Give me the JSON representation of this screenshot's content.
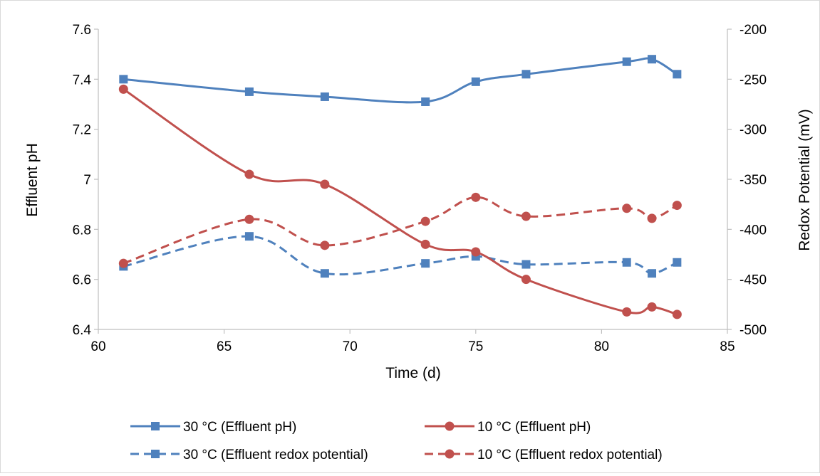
{
  "chart_data": {
    "type": "line",
    "title": "",
    "xlabel": "Time (d)",
    "ylabel": "Effluent pH",
    "y2label": "Redox Potential (mV)",
    "xlim": [
      60,
      85
    ],
    "ylim": [
      6.4,
      7.6
    ],
    "y2lim": [
      -500,
      -200
    ],
    "x_ticks": [
      "60",
      "65",
      "70",
      "75",
      "80",
      "85"
    ],
    "y_ticks": [
      "6.4",
      "6.6",
      "6.8",
      "7",
      "7.2",
      "7.4",
      "7.6"
    ],
    "y2_ticks": [
      "-500",
      "-450",
      "-400",
      "-350",
      "-300",
      "-250",
      "-200"
    ],
    "grid": false,
    "legend_position": "bottom",
    "x": [
      61,
      66,
      69,
      73,
      75,
      77,
      81,
      82,
      83
    ],
    "series": [
      {
        "name": "30 °C (Effluent pH)",
        "axis": "left",
        "color": "#4f81bd",
        "marker": "square",
        "dash": "solid",
        "values": [
          7.4,
          7.35,
          7.33,
          7.31,
          7.39,
          7.42,
          7.47,
          7.48,
          7.42
        ]
      },
      {
        "name": "10 °C (Effluent pH)",
        "axis": "left",
        "color": "#c0504d",
        "marker": "circle",
        "dash": "solid",
        "values": [
          7.36,
          7.02,
          6.98,
          6.74,
          6.71,
          6.6,
          6.47,
          6.49,
          6.46
        ]
      },
      {
        "name": "30 °C (Effluent redox potential)",
        "axis": "right",
        "color": "#4f81bd",
        "marker": "square",
        "dash": "dashed",
        "values": [
          -437,
          -407,
          -444,
          -434,
          -427,
          -435,
          -433,
          -444,
          -433
        ]
      },
      {
        "name": "10 °C (Effluent redox potential)",
        "axis": "right",
        "color": "#c0504d",
        "marker": "circle",
        "dash": "dashed",
        "values": [
          -434,
          -390,
          -416,
          -392,
          -368,
          -387,
          -379,
          -389,
          -376
        ]
      }
    ]
  }
}
